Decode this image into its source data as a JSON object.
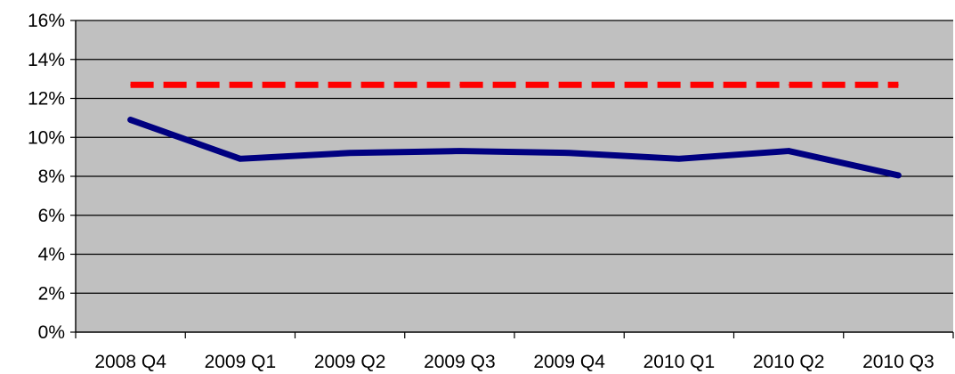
{
  "chart_data": {
    "type": "line",
    "title": "",
    "xlabel": "",
    "ylabel": "",
    "categories": [
      "2008 Q4",
      "2009 Q1",
      "2009 Q2",
      "2009 Q3",
      "2009 Q4",
      "2010 Q1",
      "2010 Q2",
      "2010 Q3"
    ],
    "ylim": [
      0,
      16
    ],
    "yticks": [
      0,
      2,
      4,
      6,
      8,
      10,
      12,
      14,
      16
    ],
    "ytick_labels": [
      "0%",
      "2%",
      "4%",
      "6%",
      "8%",
      "10%",
      "12%",
      "14%",
      "16%"
    ],
    "grid": true,
    "legend": "none",
    "plot_background": "#c0c0c0",
    "series": [
      {
        "values": [
          10.9,
          8.9,
          9.2,
          9.3,
          9.2,
          8.9,
          9.3,
          8.05
        ],
        "color": "#000080",
        "style": "solid"
      },
      {
        "values": [
          12.7,
          12.7,
          12.7,
          12.7,
          12.7,
          12.7,
          12.7,
          12.7
        ],
        "color": "#ff0000",
        "style": "dashed"
      }
    ]
  }
}
